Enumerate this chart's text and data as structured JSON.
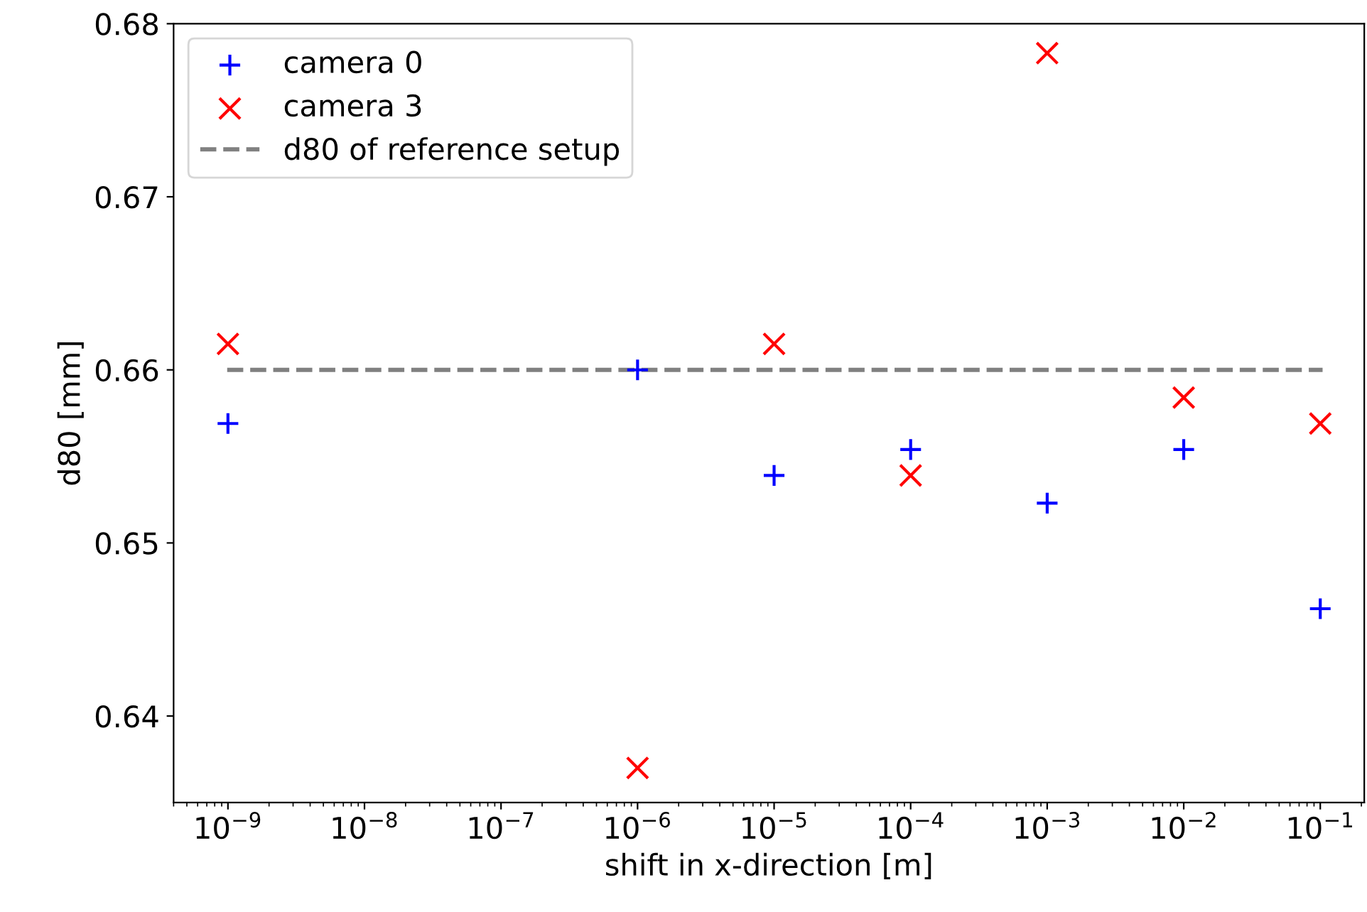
{
  "chart_data": {
    "type": "scatter",
    "xlabel": "shift in x-direction [m]",
    "ylabel": "d80 [mm]",
    "log": "x",
    "x": [
      1e-09,
      1e-06,
      1e-05,
      0.0001,
      0.001,
      0.01,
      0.1
    ],
    "series": [
      {
        "name": "camera 0",
        "color": "#0000ff",
        "marker": "plus",
        "values": [
          0.6569,
          0.66,
          0.6539,
          0.6554,
          0.6523,
          0.6554,
          0.6462
        ]
      },
      {
        "name": "camera 3",
        "color": "#ff0000",
        "marker": "cross",
        "values": [
          0.6615,
          0.637,
          0.6615,
          0.6539,
          0.6783,
          0.6584,
          0.6569
        ]
      }
    ],
    "ref_lines": [
      {
        "axis": "y",
        "value": 0.66,
        "label": "d80 of reference setup",
        "color": "#808080",
        "line_style": "dashed"
      }
    ],
    "xlim": [
      4e-10,
      0.21
    ],
    "ylim": [
      0.635,
      0.68
    ],
    "xticks": [
      {
        "value": 1e-09,
        "label": "10$^{−9}$"
      },
      {
        "value": 1e-08,
        "label": "10$^{−8}$"
      },
      {
        "value": 1e-07,
        "label": "10$^{−7}$"
      },
      {
        "value": 1e-06,
        "label": "10$^{−6}$"
      },
      {
        "value": 1e-05,
        "label": "10$^{−5}$"
      },
      {
        "value": 0.0001,
        "label": "10$^{−4}$"
      },
      {
        "value": 0.001,
        "label": "10$^{−3}$"
      },
      {
        "value": 0.01,
        "label": "10$^{−2}$"
      },
      {
        "value": 0.1,
        "label": "10$^{−1}$"
      }
    ],
    "yticks": [
      0.64,
      0.65,
      0.66,
      0.67,
      0.68
    ],
    "grid": false,
    "legend": "top left"
  }
}
